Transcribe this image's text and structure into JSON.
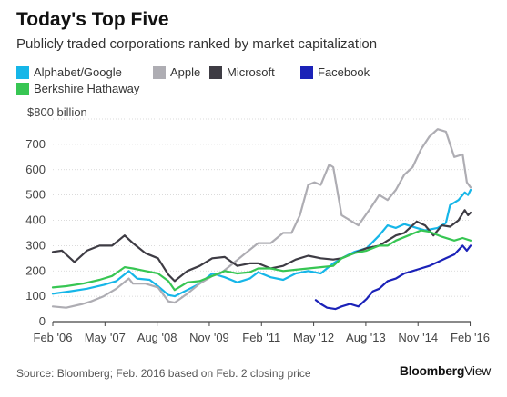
{
  "header": {
    "title": "Today's Top Five",
    "subtitle": "Publicly traded corporations ranked by market capitalization"
  },
  "footer": {
    "source": "Source: Bloomberg; Feb. 2016 based on Feb. 2 closing price",
    "brand_bold": "Bloomberg",
    "brand_light": "View"
  },
  "chart_data": {
    "type": "line",
    "title": "Today's Top Five",
    "subtitle": "Publicly traded corporations ranked by market capitalization",
    "xlabel": "",
    "ylabel": "",
    "ylim": [
      0,
      800
    ],
    "yticks": [
      0,
      100,
      200,
      300,
      400,
      500,
      600,
      700,
      800
    ],
    "ytick_labels": [
      "0",
      "100",
      "200",
      "300",
      "400",
      "500",
      "600",
      "700",
      "$800 billion"
    ],
    "xlim": [
      2006.08,
      2016.09
    ],
    "xticks": [
      2006.08,
      2007.33,
      2008.58,
      2009.83,
      2011.08,
      2012.33,
      2013.58,
      2014.83,
      2016.08
    ],
    "xtick_labels": [
      "Feb '06",
      "May '07",
      "Aug '08",
      "Nov '09",
      "Feb '11",
      "May '12",
      "Aug '13",
      "Nov '14",
      "Feb '16"
    ],
    "grid": true,
    "legend_position": "top",
    "series": [
      {
        "name": "Alphabet/Google",
        "color": "#16b6e8",
        "points": [
          [
            2006.08,
            110
          ],
          [
            2006.5,
            120
          ],
          [
            2006.9,
            130
          ],
          [
            2007.3,
            145
          ],
          [
            2007.6,
            160
          ],
          [
            2007.9,
            200
          ],
          [
            2008.1,
            170
          ],
          [
            2008.4,
            165
          ],
          [
            2008.6,
            140
          ],
          [
            2008.85,
            105
          ],
          [
            2009.0,
            100
          ],
          [
            2009.3,
            125
          ],
          [
            2009.6,
            150
          ],
          [
            2009.9,
            190
          ],
          [
            2010.2,
            175
          ],
          [
            2010.5,
            155
          ],
          [
            2010.8,
            170
          ],
          [
            2011.0,
            195
          ],
          [
            2011.3,
            175
          ],
          [
            2011.6,
            165
          ],
          [
            2011.9,
            190
          ],
          [
            2012.2,
            200
          ],
          [
            2012.5,
            190
          ],
          [
            2012.8,
            230
          ],
          [
            2013.0,
            250
          ],
          [
            2013.3,
            275
          ],
          [
            2013.6,
            290
          ],
          [
            2013.9,
            340
          ],
          [
            2014.1,
            380
          ],
          [
            2014.3,
            370
          ],
          [
            2014.5,
            385
          ],
          [
            2014.8,
            370
          ],
          [
            2015.0,
            360
          ],
          [
            2015.3,
            370
          ],
          [
            2015.5,
            390
          ],
          [
            2015.6,
            460
          ],
          [
            2015.8,
            480
          ],
          [
            2015.95,
            510
          ],
          [
            2016.03,
            500
          ],
          [
            2016.09,
            520
          ]
        ]
      },
      {
        "name": "Apple",
        "color": "#aeadb3",
        "points": [
          [
            2006.08,
            60
          ],
          [
            2006.4,
            55
          ],
          [
            2006.8,
            70
          ],
          [
            2007.0,
            80
          ],
          [
            2007.3,
            100
          ],
          [
            2007.6,
            130
          ],
          [
            2007.9,
            170
          ],
          [
            2008.0,
            150
          ],
          [
            2008.3,
            150
          ],
          [
            2008.6,
            135
          ],
          [
            2008.85,
            80
          ],
          [
            2009.0,
            75
          ],
          [
            2009.3,
            110
          ],
          [
            2009.6,
            150
          ],
          [
            2009.9,
            180
          ],
          [
            2010.1,
            190
          ],
          [
            2010.4,
            230
          ],
          [
            2010.7,
            270
          ],
          [
            2011.0,
            310
          ],
          [
            2011.3,
            310
          ],
          [
            2011.6,
            350
          ],
          [
            2011.8,
            350
          ],
          [
            2012.0,
            420
          ],
          [
            2012.2,
            540
          ],
          [
            2012.35,
            550
          ],
          [
            2012.5,
            540
          ],
          [
            2012.7,
            620
          ],
          [
            2012.8,
            610
          ],
          [
            2013.0,
            420
          ],
          [
            2013.2,
            400
          ],
          [
            2013.4,
            380
          ],
          [
            2013.7,
            450
          ],
          [
            2013.9,
            500
          ],
          [
            2014.1,
            480
          ],
          [
            2014.3,
            520
          ],
          [
            2014.5,
            580
          ],
          [
            2014.7,
            610
          ],
          [
            2014.9,
            680
          ],
          [
            2015.1,
            730
          ],
          [
            2015.3,
            760
          ],
          [
            2015.5,
            750
          ],
          [
            2015.7,
            650
          ],
          [
            2015.9,
            660
          ],
          [
            2016.0,
            550
          ],
          [
            2016.09,
            530
          ]
        ]
      },
      {
        "name": "Microsoft",
        "color": "#3e3c44",
        "points": [
          [
            2006.08,
            275
          ],
          [
            2006.3,
            280
          ],
          [
            2006.6,
            235
          ],
          [
            2006.9,
            280
          ],
          [
            2007.2,
            300
          ],
          [
            2007.5,
            300
          ],
          [
            2007.8,
            340
          ],
          [
            2008.0,
            310
          ],
          [
            2008.3,
            270
          ],
          [
            2008.6,
            250
          ],
          [
            2008.85,
            185
          ],
          [
            2009.0,
            160
          ],
          [
            2009.3,
            200
          ],
          [
            2009.6,
            220
          ],
          [
            2009.9,
            250
          ],
          [
            2010.2,
            255
          ],
          [
            2010.5,
            220
          ],
          [
            2010.8,
            230
          ],
          [
            2011.0,
            230
          ],
          [
            2011.3,
            210
          ],
          [
            2011.6,
            220
          ],
          [
            2011.9,
            245
          ],
          [
            2012.2,
            260
          ],
          [
            2012.5,
            250
          ],
          [
            2012.8,
            245
          ],
          [
            2013.0,
            250
          ],
          [
            2013.3,
            270
          ],
          [
            2013.6,
            290
          ],
          [
            2013.9,
            300
          ],
          [
            2014.1,
            320
          ],
          [
            2014.3,
            340
          ],
          [
            2014.5,
            350
          ],
          [
            2014.8,
            395
          ],
          [
            2015.0,
            380
          ],
          [
            2015.2,
            340
          ],
          [
            2015.4,
            380
          ],
          [
            2015.6,
            375
          ],
          [
            2015.8,
            400
          ],
          [
            2015.95,
            440
          ],
          [
            2016.03,
            420
          ],
          [
            2016.09,
            430
          ]
        ]
      },
      {
        "name": "Facebook",
        "color": "#1b22b8",
        "points": [
          [
            2012.38,
            85
          ],
          [
            2012.5,
            70
          ],
          [
            2012.65,
            55
          ],
          [
            2012.85,
            50
          ],
          [
            2013.0,
            60
          ],
          [
            2013.2,
            70
          ],
          [
            2013.4,
            60
          ],
          [
            2013.6,
            90
          ],
          [
            2013.75,
            120
          ],
          [
            2013.9,
            130
          ],
          [
            2014.1,
            160
          ],
          [
            2014.3,
            170
          ],
          [
            2014.5,
            190
          ],
          [
            2014.7,
            200
          ],
          [
            2014.9,
            210
          ],
          [
            2015.1,
            220
          ],
          [
            2015.3,
            235
          ],
          [
            2015.5,
            250
          ],
          [
            2015.7,
            265
          ],
          [
            2015.9,
            300
          ],
          [
            2016.0,
            280
          ],
          [
            2016.09,
            300
          ]
        ]
      },
      {
        "name": "Berkshire Hathaway",
        "color": "#37c653",
        "points": [
          [
            2006.08,
            135
          ],
          [
            2006.4,
            140
          ],
          [
            2006.8,
            150
          ],
          [
            2007.2,
            165
          ],
          [
            2007.5,
            180
          ],
          [
            2007.8,
            215
          ],
          [
            2008.0,
            210
          ],
          [
            2008.3,
            200
          ],
          [
            2008.6,
            190
          ],
          [
            2008.85,
            160
          ],
          [
            2009.0,
            125
          ],
          [
            2009.3,
            155
          ],
          [
            2009.6,
            160
          ],
          [
            2009.9,
            180
          ],
          [
            2010.2,
            200
          ],
          [
            2010.5,
            190
          ],
          [
            2010.8,
            195
          ],
          [
            2011.0,
            210
          ],
          [
            2011.3,
            210
          ],
          [
            2011.6,
            200
          ],
          [
            2011.9,
            205
          ],
          [
            2012.2,
            210
          ],
          [
            2012.5,
            215
          ],
          [
            2012.8,
            220
          ],
          [
            2013.0,
            250
          ],
          [
            2013.3,
            270
          ],
          [
            2013.6,
            280
          ],
          [
            2013.9,
            300
          ],
          [
            2014.1,
            300
          ],
          [
            2014.3,
            320
          ],
          [
            2014.6,
            340
          ],
          [
            2014.9,
            360
          ],
          [
            2015.1,
            355
          ],
          [
            2015.4,
            335
          ],
          [
            2015.7,
            320
          ],
          [
            2015.9,
            330
          ],
          [
            2016.09,
            320
          ]
        ]
      }
    ]
  }
}
